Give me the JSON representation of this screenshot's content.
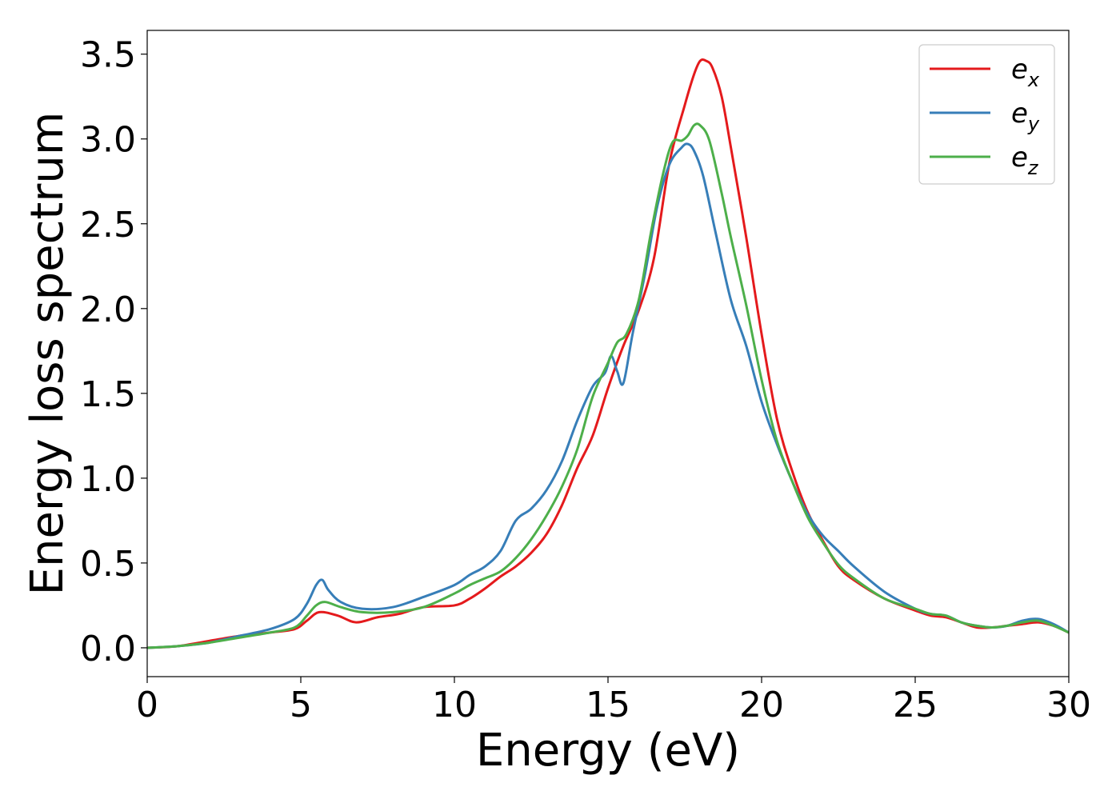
{
  "chart_data": {
    "type": "line",
    "title": "",
    "xlabel": "Energy (eV)",
    "ylabel": "Energy loss spectrum",
    "xlim": [
      0,
      30
    ],
    "ylim": [
      -0.17,
      3.64
    ],
    "xticks": [
      0,
      5,
      10,
      15,
      20,
      25,
      30
    ],
    "xtick_labels": [
      "0",
      "5",
      "10",
      "15",
      "20",
      "25",
      "30"
    ],
    "yticks": [
      0.0,
      0.5,
      1.0,
      1.5,
      2.0,
      2.5,
      3.0,
      3.5
    ],
    "ytick_labels": [
      "0.0",
      "0.5",
      "1.0",
      "1.5",
      "2.0",
      "2.5",
      "3.0",
      "3.5"
    ],
    "grid": false,
    "legend_position": "top-right",
    "series": [
      {
        "name": "e_x",
        "label_base": "e",
        "label_sub": "x",
        "color": "#e41a1c",
        "x": [
          0,
          1,
          2,
          3,
          4,
          4.8,
          5.2,
          5.6,
          6.2,
          6.8,
          7.5,
          8.2,
          9,
          10,
          10.5,
          11,
          11.5,
          12,
          12.5,
          13,
          13.5,
          14,
          14.5,
          15,
          15.5,
          16,
          16.5,
          17,
          17.5,
          17.8,
          18.0,
          18.2,
          18.4,
          18.7,
          19,
          19.5,
          20,
          20.5,
          21,
          21.5,
          22,
          22.5,
          23,
          24,
          25,
          25.5,
          26,
          26.5,
          27,
          27.5,
          28,
          28.5,
          29,
          29.5,
          30
        ],
        "y": [
          0.0,
          0.01,
          0.04,
          0.07,
          0.09,
          0.11,
          0.16,
          0.21,
          0.19,
          0.15,
          0.18,
          0.2,
          0.24,
          0.25,
          0.29,
          0.35,
          0.42,
          0.48,
          0.56,
          0.67,
          0.84,
          1.06,
          1.25,
          1.53,
          1.78,
          1.99,
          2.3,
          2.86,
          3.2,
          3.38,
          3.46,
          3.46,
          3.42,
          3.25,
          2.95,
          2.42,
          1.85,
          1.35,
          1.04,
          0.8,
          0.63,
          0.48,
          0.4,
          0.29,
          0.22,
          0.19,
          0.18,
          0.15,
          0.12,
          0.12,
          0.13,
          0.14,
          0.15,
          0.13,
          0.09
        ]
      },
      {
        "name": "e_y",
        "label_base": "e",
        "label_sub": "y",
        "color": "#377eb8",
        "x": [
          0,
          1,
          2,
          3,
          4,
          4.8,
          5.2,
          5.5,
          5.7,
          5.9,
          6.3,
          7,
          8,
          9,
          10,
          10.5,
          11,
          11.5,
          12,
          12.5,
          13,
          13.5,
          14,
          14.5,
          14.9,
          15.1,
          15.3,
          15.5,
          15.8,
          16.2,
          16.6,
          17,
          17.4,
          17.6,
          17.8,
          18.1,
          18.5,
          19,
          19.5,
          20,
          20.5,
          21,
          21.5,
          22,
          22.5,
          23,
          24,
          25,
          25.5,
          26,
          26.5,
          27,
          27.5,
          28,
          28.5,
          29,
          29.5,
          30
        ],
        "y": [
          0.0,
          0.01,
          0.03,
          0.07,
          0.11,
          0.17,
          0.26,
          0.37,
          0.4,
          0.34,
          0.27,
          0.23,
          0.24,
          0.3,
          0.37,
          0.43,
          0.48,
          0.57,
          0.75,
          0.82,
          0.93,
          1.1,
          1.34,
          1.54,
          1.62,
          1.72,
          1.63,
          1.56,
          1.85,
          2.2,
          2.6,
          2.85,
          2.95,
          2.97,
          2.93,
          2.78,
          2.45,
          2.05,
          1.78,
          1.45,
          1.2,
          0.98,
          0.79,
          0.66,
          0.57,
          0.48,
          0.33,
          0.23,
          0.2,
          0.19,
          0.15,
          0.13,
          0.12,
          0.13,
          0.16,
          0.17,
          0.14,
          0.09
        ]
      },
      {
        "name": "e_z",
        "label_base": "e",
        "label_sub": "z",
        "color": "#4daf4a",
        "x": [
          0,
          1,
          2,
          3,
          4,
          4.8,
          5.2,
          5.5,
          5.8,
          6.3,
          7,
          8,
          9,
          10,
          10.5,
          11,
          11.5,
          12,
          12.5,
          13,
          13.5,
          14,
          14.5,
          15,
          15.3,
          15.6,
          16,
          16.4,
          16.8,
          17.1,
          17.4,
          17.6,
          17.8,
          18.0,
          18.3,
          18.7,
          19,
          19.5,
          20,
          20.5,
          21,
          21.5,
          22,
          22.5,
          23,
          24,
          25,
          25.5,
          26,
          26.5,
          27,
          27.5,
          28,
          28.5,
          29,
          29.5,
          30
        ],
        "y": [
          0.0,
          0.01,
          0.03,
          0.06,
          0.09,
          0.12,
          0.19,
          0.25,
          0.27,
          0.24,
          0.21,
          0.21,
          0.24,
          0.32,
          0.37,
          0.41,
          0.45,
          0.53,
          0.64,
          0.78,
          0.95,
          1.17,
          1.48,
          1.68,
          1.8,
          1.85,
          2.05,
          2.45,
          2.8,
          2.98,
          2.99,
          3.02,
          3.08,
          3.08,
          2.99,
          2.68,
          2.42,
          2.02,
          1.58,
          1.22,
          0.98,
          0.77,
          0.62,
          0.49,
          0.41,
          0.29,
          0.23,
          0.2,
          0.19,
          0.15,
          0.13,
          0.12,
          0.13,
          0.15,
          0.16,
          0.13,
          0.09
        ]
      }
    ]
  }
}
